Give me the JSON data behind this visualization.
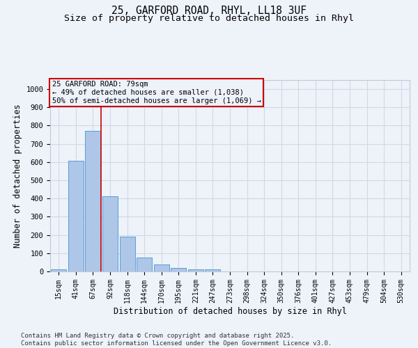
{
  "title_line1": "25, GARFORD ROAD, RHYL, LL18 3UF",
  "title_line2": "Size of property relative to detached houses in Rhyl",
  "xlabel": "Distribution of detached houses by size in Rhyl",
  "ylabel": "Number of detached properties",
  "categories": [
    "15sqm",
    "41sqm",
    "67sqm",
    "92sqm",
    "118sqm",
    "144sqm",
    "170sqm",
    "195sqm",
    "221sqm",
    "247sqm",
    "273sqm",
    "298sqm",
    "324sqm",
    "350sqm",
    "376sqm",
    "401sqm",
    "427sqm",
    "453sqm",
    "479sqm",
    "504sqm",
    "530sqm"
  ],
  "values": [
    12,
    607,
    773,
    413,
    192,
    78,
    40,
    18,
    10,
    10,
    0,
    0,
    0,
    0,
    0,
    0,
    0,
    0,
    0,
    0,
    0
  ],
  "bar_color": "#aec6e8",
  "bar_edge_color": "#5a9fd4",
  "grid_color": "#d0d8e8",
  "bg_color": "#eef2f9",
  "vline_x": 2.47,
  "vline_color": "#cc0000",
  "annotation_line1": "25 GARFORD ROAD: 79sqm",
  "annotation_line2": "← 49% of detached houses are smaller (1,038)",
  "annotation_line3": "50% of semi-detached houses are larger (1,069) →",
  "annotation_box_color": "#cc0000",
  "ylim": [
    0,
    1050
  ],
  "yticks": [
    0,
    100,
    200,
    300,
    400,
    500,
    600,
    700,
    800,
    900,
    1000
  ],
  "footnote": "Contains HM Land Registry data © Crown copyright and database right 2025.\nContains public sector information licensed under the Open Government Licence v3.0.",
  "title_fontsize": 10.5,
  "subtitle_fontsize": 9.5,
  "tick_fontsize": 7,
  "label_fontsize": 8.5,
  "footnote_fontsize": 6.5,
  "annotation_fontsize": 7.5
}
